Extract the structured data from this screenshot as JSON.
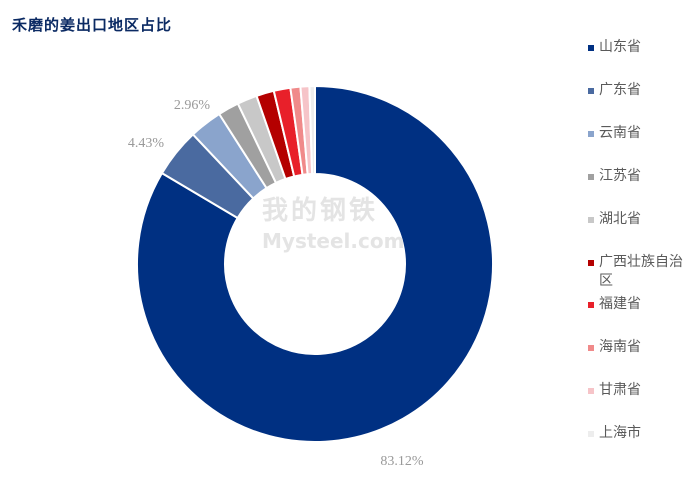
{
  "chart_data": {
    "type": "pie",
    "title": "禾磨的姜出口地区占比",
    "series": [
      {
        "name": "山东省",
        "value": 83.12,
        "color": "#003082",
        "label": "83.12%"
      },
      {
        "name": "广东省",
        "value": 4.43,
        "color": "#4a6aa0",
        "label": "4.43%"
      },
      {
        "name": "云南省",
        "value": 2.96,
        "color": "#8aa4cc",
        "label": "2.96%"
      },
      {
        "name": "江苏省",
        "value": 1.9,
        "color": "#a0a0a0",
        "label": ""
      },
      {
        "name": "湖北省",
        "value": 1.8,
        "color": "#c8c8c8",
        "label": ""
      },
      {
        "name": "广西壮族自治区",
        "value": 1.6,
        "color": "#b40000",
        "label": ""
      },
      {
        "name": "福建省",
        "value": 1.5,
        "color": "#e8202a",
        "label": ""
      },
      {
        "name": "海南省",
        "value": 0.9,
        "color": "#f08a8a",
        "label": ""
      },
      {
        "name": "甘肃省",
        "value": 0.8,
        "color": "#f6c4c8",
        "label": ""
      },
      {
        "name": "上海市",
        "value": 0.5,
        "color": "#ededed",
        "label": ""
      }
    ],
    "legend_position": "right",
    "donut": true
  },
  "watermark": {
    "cn": "我的钢铁",
    "en": "Mysteel.com"
  }
}
